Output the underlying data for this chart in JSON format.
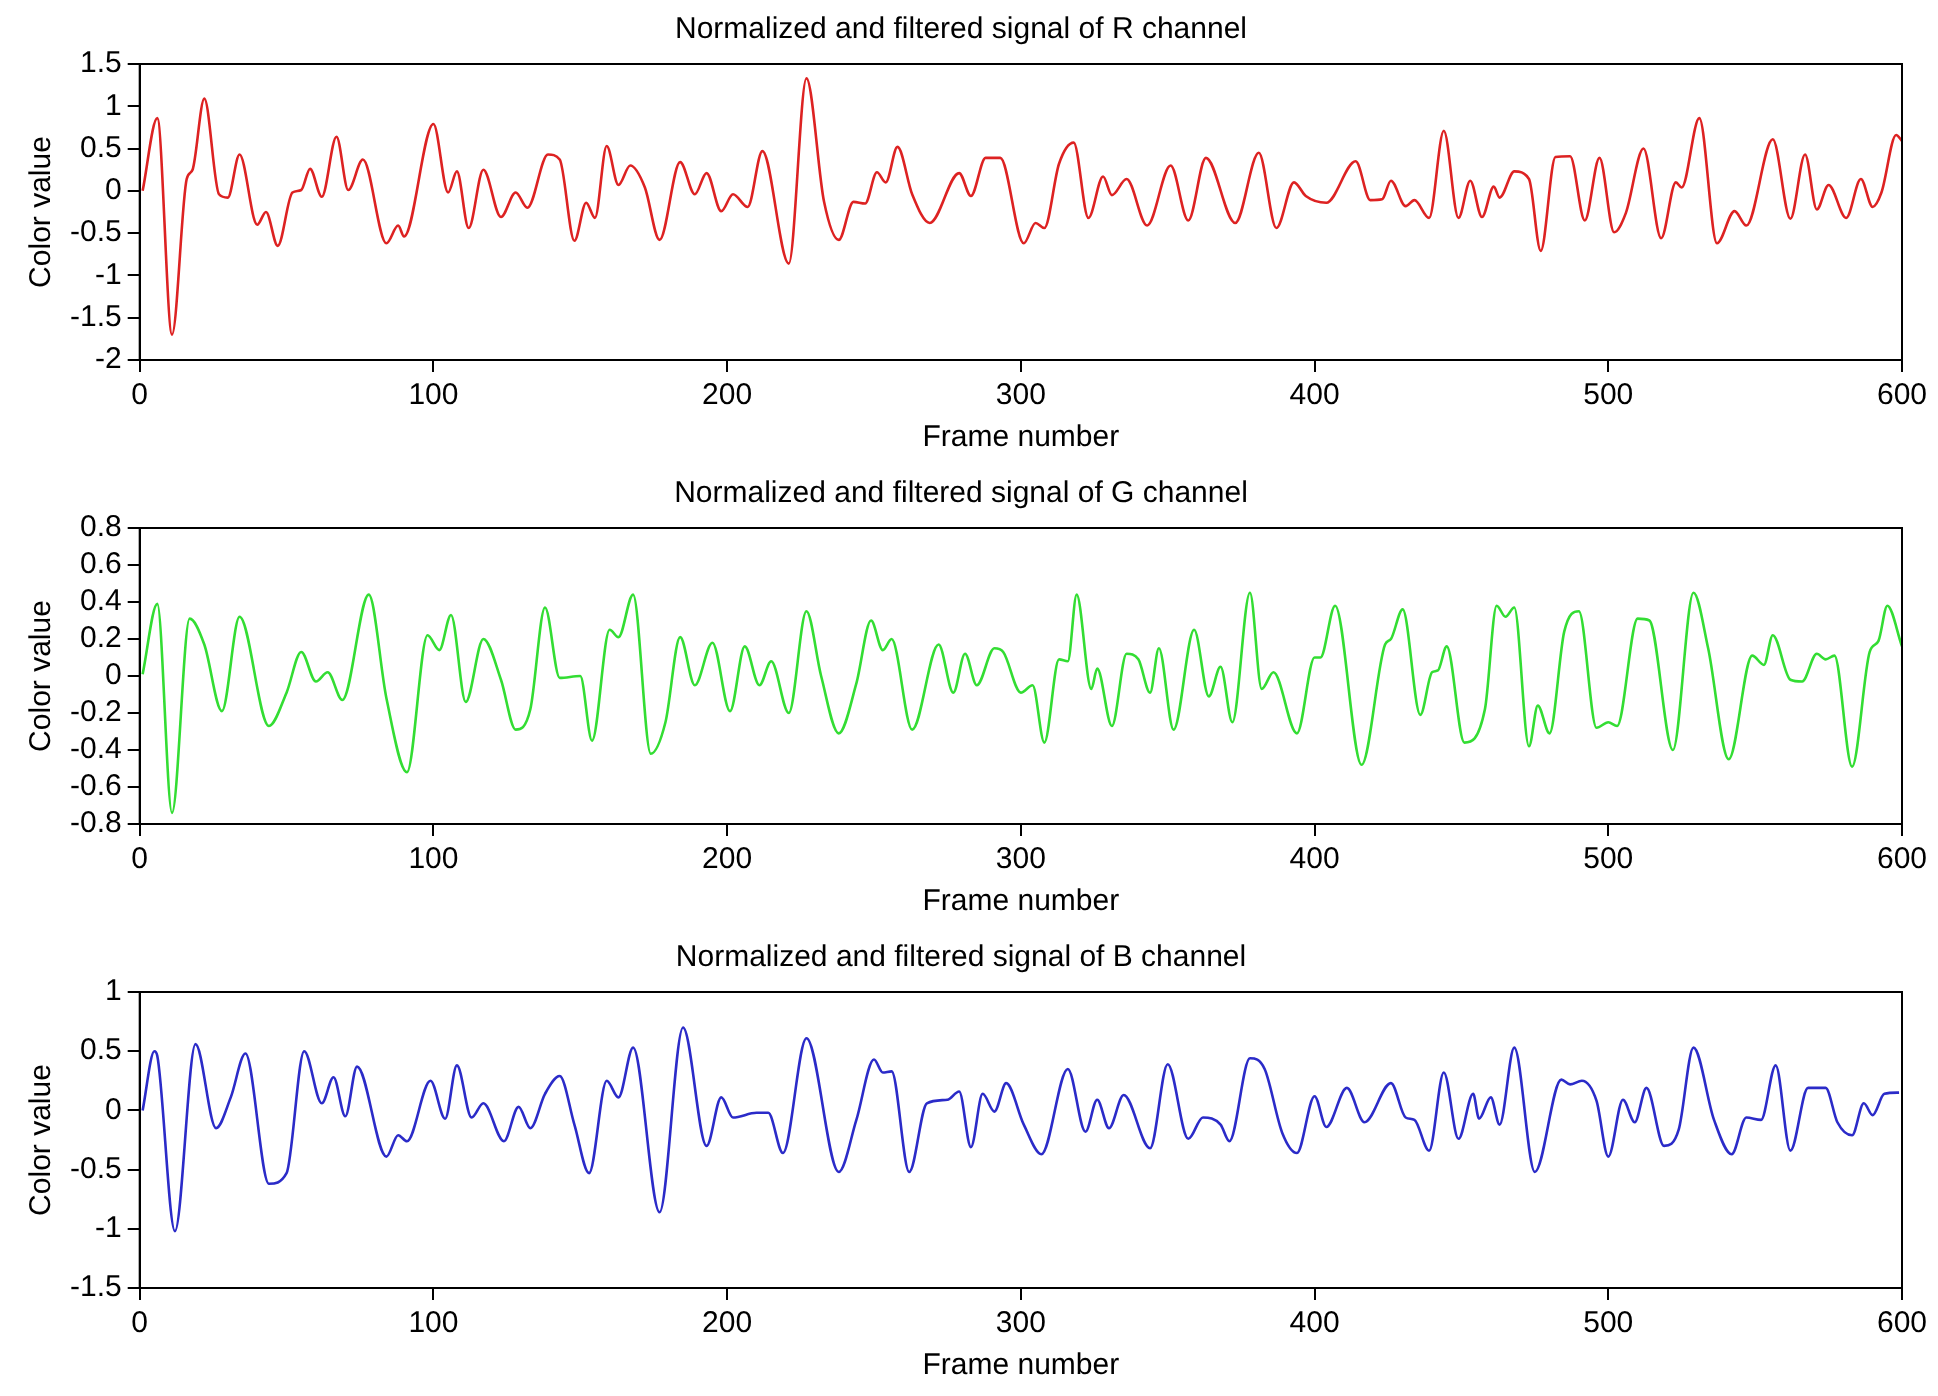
{
  "chart_data": [
    {
      "type": "line",
      "title": "Normalized and filtered signal of R channel",
      "xlabel": "Frame number",
      "ylabel": "Color value",
      "xlim": [
        0,
        600
      ],
      "xticks": [
        0,
        100,
        200,
        300,
        400,
        500,
        600
      ],
      "ylim": [
        -2,
        1.5
      ],
      "yticks": [
        -2,
        -1.5,
        -1,
        -0.5,
        0,
        0.5,
        1,
        1.5
      ],
      "grid": false,
      "legend": false,
      "marker": "none",
      "line_style": "solid",
      "series": [
        {
          "color": "#dd2222",
          "x": [
            1,
            6,
            11,
            16,
            18,
            22,
            27,
            30,
            34,
            40,
            43,
            47,
            52,
            55,
            58,
            62,
            67,
            71,
            76,
            84,
            88,
            90,
            100,
            105,
            108,
            112,
            117,
            123,
            128,
            132,
            139,
            143,
            148,
            152,
            155,
            159,
            163,
            167,
            172,
            177,
            184,
            189,
            193,
            198,
            202,
            207,
            212,
            221,
            227,
            233,
            238,
            243,
            247,
            251,
            254,
            258,
            263,
            269,
            279,
            283,
            288,
            293,
            301,
            305,
            308,
            313,
            318,
            323,
            328,
            331,
            336,
            343,
            351,
            357,
            363,
            373,
            381,
            387,
            393,
            397,
            404,
            414,
            419,
            423,
            426,
            431,
            434,
            439,
            444,
            449,
            453,
            457,
            461,
            463,
            468,
            473,
            477,
            482,
            487,
            492,
            497,
            502,
            506,
            512,
            518,
            523,
            525,
            531,
            537,
            543,
            547,
            556,
            562,
            567,
            571,
            575,
            581,
            586,
            590,
            593,
            598,
            600
          ],
          "values": [
            0,
            0.86,
            -1.7,
            0.14,
            0.25,
            1.09,
            -0.04,
            -0.08,
            0.43,
            -0.4,
            -0.25,
            -0.65,
            -0.02,
            0.01,
            0.26,
            -0.07,
            0.64,
            0.01,
            0.37,
            -0.62,
            -0.41,
            -0.54,
            0.79,
            -0.02,
            0.23,
            -0.44,
            0.25,
            -0.31,
            -0.02,
            -0.2,
            0.43,
            0.37,
            -0.59,
            -0.14,
            -0.32,
            0.53,
            0.07,
            0.3,
            0.04,
            -0.58,
            0.34,
            -0.04,
            0.21,
            -0.24,
            -0.04,
            -0.19,
            0.47,
            -0.86,
            1.33,
            -0.13,
            -0.58,
            -0.13,
            -0.15,
            0.22,
            0.1,
            0.52,
            -0.04,
            -0.38,
            0.21,
            -0.06,
            0.39,
            0.39,
            -0.62,
            -0.38,
            -0.44,
            0.32,
            0.57,
            -0.32,
            0.17,
            -0.05,
            0.14,
            -0.41,
            0.3,
            -0.35,
            0.39,
            -0.38,
            0.45,
            -0.44,
            0.1,
            -0.06,
            -0.14,
            0.35,
            -0.11,
            -0.1,
            0.12,
            -0.18,
            -0.11,
            -0.32,
            0.71,
            -0.32,
            0.12,
            -0.31,
            0.05,
            -0.08,
            0.23,
            0.14,
            -0.71,
            0.4,
            0.41,
            -0.35,
            0.39,
            -0.49,
            -0.26,
            0.5,
            -0.56,
            0.1,
            0.04,
            0.86,
            -0.62,
            -0.24,
            -0.41,
            0.61,
            -0.33,
            0.43,
            -0.22,
            0.07,
            -0.32,
            0.14,
            -0.19,
            -0.02,
            0.66,
            0.59
          ]
        }
      ]
    },
    {
      "type": "line",
      "title": "Normalized and filtered signal of G channel",
      "xlabel": "Frame number",
      "ylabel": "Color value",
      "xlim": [
        0,
        600
      ],
      "xticks": [
        0,
        100,
        200,
        300,
        400,
        500,
        600
      ],
      "ylim": [
        -0.8,
        0.8
      ],
      "yticks": [
        -0.8,
        -0.6,
        -0.4,
        -0.2,
        0,
        0.2,
        0.4,
        0.6,
        0.8
      ],
      "grid": false,
      "legend": false,
      "marker": "none",
      "line_style": "solid",
      "series": [
        {
          "color": "#33dd33",
          "x": [
            1,
            6,
            11,
            17,
            22,
            28,
            34,
            44,
            50,
            55,
            60,
            64,
            69,
            78,
            84,
            91,
            98,
            102,
            106,
            111,
            117,
            123,
            128,
            133,
            138,
            143,
            150,
            154,
            160,
            163,
            168,
            174,
            179,
            184,
            189,
            195,
            201,
            206,
            211,
            215,
            221,
            227,
            232,
            238,
            244,
            249,
            253,
            256,
            263,
            272,
            277,
            281,
            285,
            291,
            294,
            300,
            304,
            308,
            313,
            316,
            319,
            324,
            326,
            331,
            336,
            340,
            344,
            347,
            352,
            359,
            364,
            368,
            372,
            378,
            382,
            386,
            394,
            400,
            402,
            407,
            416,
            424,
            426,
            430,
            436,
            440,
            442,
            445,
            451,
            458,
            462,
            465,
            468,
            473,
            476,
            480,
            485,
            490,
            496,
            500,
            503,
            510,
            514,
            522,
            529,
            534,
            541,
            549,
            553,
            556,
            562,
            566,
            571,
            574,
            577,
            583,
            589,
            592,
            595,
            600
          ],
          "values": [
            0.01,
            0.39,
            -0.74,
            0.31,
            0.17,
            -0.19,
            0.32,
            -0.27,
            -0.09,
            0.13,
            -0.03,
            0.02,
            -0.13,
            0.44,
            -0.12,
            -0.52,
            0.22,
            0.14,
            0.33,
            -0.14,
            0.2,
            -0.02,
            -0.29,
            -0.18,
            0.37,
            -0.01,
            0,
            -0.35,
            0.25,
            0.21,
            0.44,
            -0.42,
            -0.25,
            0.21,
            -0.05,
            0.18,
            -0.19,
            0.16,
            -0.05,
            0.08,
            -0.2,
            0.35,
            0,
            -0.31,
            -0.04,
            0.3,
            0.14,
            0.2,
            -0.29,
            0.17,
            -0.09,
            0.12,
            -0.05,
            0.15,
            0.13,
            -0.09,
            -0.05,
            -0.36,
            0.09,
            0.08,
            0.44,
            -0.07,
            0.04,
            -0.27,
            0.12,
            0.09,
            -0.09,
            0.15,
            -0.29,
            0.25,
            -0.11,
            0.05,
            -0.25,
            0.45,
            -0.07,
            0.02,
            -0.31,
            0.1,
            0.1,
            0.38,
            -0.48,
            0.17,
            0.2,
            0.36,
            -0.21,
            0.02,
            0.03,
            0.16,
            -0.36,
            -0.18,
            0.38,
            0.32,
            0.37,
            -0.38,
            -0.16,
            -0.31,
            0.24,
            0.35,
            -0.28,
            -0.25,
            -0.27,
            0.31,
            0.3,
            -0.4,
            0.45,
            0.15,
            -0.45,
            0.11,
            0.06,
            0.22,
            -0.02,
            -0.03,
            0.12,
            0.09,
            0.11,
            -0.49,
            0.13,
            0.19,
            0.38,
            0.16
          ]
        }
      ]
    },
    {
      "type": "line",
      "title": "Normalized and filtered signal of B channel",
      "xlabel": "Frame number",
      "ylabel": "Color value",
      "xlim": [
        0,
        600
      ],
      "xticks": [
        0,
        100,
        200,
        300,
        400,
        500,
        600
      ],
      "ylim": [
        -1.5,
        1
      ],
      "yticks": [
        -1.5,
        -1,
        -0.5,
        0,
        0.5,
        1
      ],
      "grid": false,
      "legend": false,
      "marker": "none",
      "line_style": "solid",
      "series": [
        {
          "color": "#2b2bc8",
          "x": [
            1,
            5,
            6,
            12,
            19,
            26,
            31,
            36,
            44,
            50,
            56,
            62,
            66,
            70,
            74,
            84,
            88,
            91,
            99,
            104,
            108,
            113,
            117,
            124,
            129,
            133,
            138,
            143,
            148,
            153,
            159,
            163,
            168,
            177,
            185,
            193,
            198,
            202,
            210,
            214,
            219,
            227,
            238,
            244,
            250,
            253,
            256,
            262,
            268,
            275,
            279,
            283,
            287,
            291,
            295,
            301,
            307,
            316,
            322,
            326,
            330,
            335,
            344,
            350,
            357,
            362,
            368,
            371,
            378,
            383,
            389,
            394,
            400,
            404,
            411,
            417,
            426,
            431,
            434,
            439,
            444,
            449,
            454,
            456,
            460,
            463,
            468,
            475,
            484,
            487,
            491,
            496,
            500,
            505,
            509,
            513,
            519,
            524,
            529,
            536,
            542,
            547,
            552,
            557,
            562,
            568,
            574,
            578,
            583,
            587,
            590,
            594,
            599
          ],
          "values": [
            0,
            0.5,
            0.46,
            -1.02,
            0.56,
            -0.15,
            0.11,
            0.48,
            -0.62,
            -0.53,
            0.5,
            0.06,
            0.28,
            -0.05,
            0.37,
            -0.39,
            -0.21,
            -0.26,
            0.25,
            -0.07,
            0.38,
            -0.06,
            0.06,
            -0.26,
            0.03,
            -0.15,
            0.14,
            0.29,
            -0.12,
            -0.53,
            0.25,
            0.11,
            0.53,
            -0.86,
            0.7,
            -0.3,
            0.11,
            -0.06,
            -0.02,
            -0.02,
            -0.36,
            0.61,
            -0.52,
            -0.08,
            0.43,
            0.32,
            0.33,
            -0.52,
            0.06,
            0.09,
            0.16,
            -0.31,
            0.14,
            -0.01,
            0.23,
            -0.12,
            -0.37,
            0.35,
            -0.18,
            0.09,
            -0.15,
            0.13,
            -0.32,
            0.39,
            -0.24,
            -0.06,
            -0.12,
            -0.26,
            0.44,
            0.35,
            -0.19,
            -0.36,
            0.12,
            -0.14,
            0.19,
            -0.1,
            0.23,
            -0.06,
            -0.08,
            -0.34,
            0.32,
            -0.24,
            0.14,
            -0.07,
            0.11,
            -0.12,
            0.53,
            -0.52,
            0.26,
            0.22,
            0.25,
            0.08,
            -0.39,
            0.09,
            -0.1,
            0.19,
            -0.3,
            -0.16,
            0.53,
            -0.08,
            -0.37,
            -0.06,
            -0.08,
            0.38,
            -0.34,
            0.19,
            0.19,
            -0.1,
            -0.21,
            0.06,
            -0.04,
            0.14,
            0.15
          ]
        }
      ]
    }
  ]
}
